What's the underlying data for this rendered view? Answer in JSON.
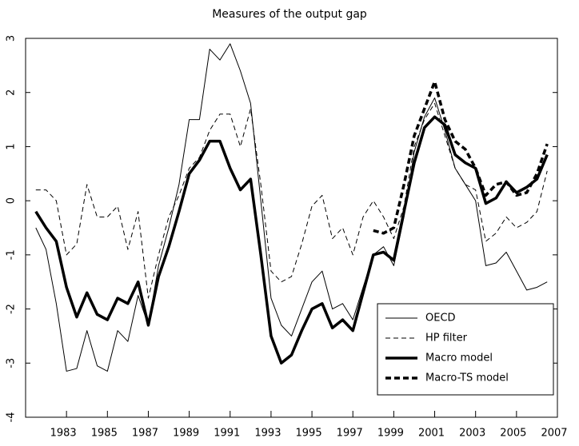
{
  "chart_data": {
    "type": "line",
    "title": "Measures of the output gap",
    "x": [
      1981.5,
      1982,
      1982.5,
      1983,
      1983.5,
      1984,
      1984.5,
      1985,
      1985.5,
      1986,
      1986.5,
      1987,
      1987.5,
      1988,
      1988.5,
      1989,
      1989.5,
      1990,
      1990.5,
      1991,
      1991.5,
      1992,
      1992.5,
      1993,
      1993.5,
      1994,
      1994.5,
      1995,
      1995.5,
      1996,
      1996.5,
      1997,
      1997.5,
      1998,
      1998.5,
      1999,
      1999.5,
      2000,
      2000.5,
      2001,
      2001.5,
      2002,
      2002.5,
      2003,
      2003.5,
      2004,
      2004.5,
      2005,
      2005.5,
      2006,
      2006.5
    ],
    "series": [
      {
        "name": "OECD",
        "color": "#000000",
        "dashed": false,
        "thick": false,
        "values": [
          -0.5,
          -0.9,
          -1.9,
          -3.15,
          -3.1,
          -2.4,
          -3.05,
          -3.15,
          -2.4,
          -2.6,
          -1.75,
          -2.3,
          -1.2,
          -0.5,
          0.3,
          1.5,
          1.5,
          2.8,
          2.6,
          2.9,
          2.4,
          1.8,
          0.0,
          -1.8,
          -2.3,
          -2.5,
          -2.0,
          -1.5,
          -1.3,
          -2.0,
          -1.9,
          -2.2,
          -1.6,
          -1.0,
          -0.85,
          -1.2,
          -0.3,
          0.9,
          1.55,
          1.9,
          1.3,
          0.6,
          0.3,
          0.0,
          -1.2,
          -1.15,
          -0.95,
          -1.3,
          -1.65,
          -1.6,
          -1.5
        ]
      },
      {
        "name": "HP filter",
        "color": "#000000",
        "dashed": true,
        "thick": false,
        "values": [
          0.2,
          0.2,
          0.0,
          -1.0,
          -0.8,
          0.3,
          -0.3,
          -0.3,
          -0.1,
          -0.9,
          -0.2,
          -1.8,
          -1.0,
          -0.3,
          0.1,
          0.6,
          0.8,
          1.3,
          1.6,
          1.6,
          1.0,
          1.7,
          0.3,
          -1.3,
          -1.5,
          -1.4,
          -0.8,
          -0.1,
          0.1,
          -0.7,
          -0.5,
          -1.0,
          -0.3,
          0.0,
          -0.3,
          -0.7,
          -0.1,
          1.0,
          1.5,
          1.8,
          1.2,
          0.6,
          0.3,
          0.2,
          -0.75,
          -0.6,
          -0.3,
          -0.5,
          -0.4,
          -0.2,
          0.55
        ]
      },
      {
        "name": "Macro model",
        "color": "#000000",
        "dashed": false,
        "thick": true,
        "values": [
          -0.2,
          -0.5,
          -0.75,
          -1.6,
          -2.15,
          -1.7,
          -2.1,
          -2.2,
          -1.8,
          -1.9,
          -1.5,
          -2.3,
          -1.4,
          -0.85,
          -0.2,
          0.5,
          0.75,
          1.1,
          1.1,
          0.6,
          0.2,
          0.4,
          -1.0,
          -2.5,
          -3.0,
          -2.85,
          -2.4,
          -2.0,
          -1.9,
          -2.35,
          -2.2,
          -2.4,
          -1.7,
          -1.0,
          -0.95,
          -1.1,
          -0.2,
          0.7,
          1.35,
          1.55,
          1.4,
          0.85,
          0.7,
          0.6,
          -0.05,
          0.05,
          0.35,
          0.15,
          0.25,
          0.4,
          0.85
        ]
      },
      {
        "name": "Macro-TS model",
        "color": "#000000",
        "dashed": true,
        "thick": true,
        "values": [
          null,
          null,
          null,
          null,
          null,
          null,
          null,
          null,
          null,
          null,
          null,
          null,
          null,
          null,
          null,
          null,
          null,
          null,
          null,
          null,
          null,
          null,
          null,
          null,
          null,
          null,
          null,
          null,
          null,
          null,
          null,
          null,
          null,
          -0.55,
          -0.6,
          -0.5,
          0.3,
          1.2,
          1.7,
          2.2,
          1.5,
          1.1,
          0.95,
          0.6,
          0.1,
          0.3,
          0.35,
          0.1,
          0.15,
          0.5,
          1.05
        ]
      }
    ],
    "xlim": [
      1981,
      2007
    ],
    "xticks": [
      1983,
      1985,
      1987,
      1989,
      1991,
      1993,
      1995,
      1997,
      1999,
      2001,
      2003,
      2005,
      2007
    ],
    "ylim": [
      -4,
      3
    ],
    "yticks": [
      -4,
      -3,
      -2,
      -1,
      0,
      1,
      2,
      3
    ],
    "legend": "lower right"
  }
}
